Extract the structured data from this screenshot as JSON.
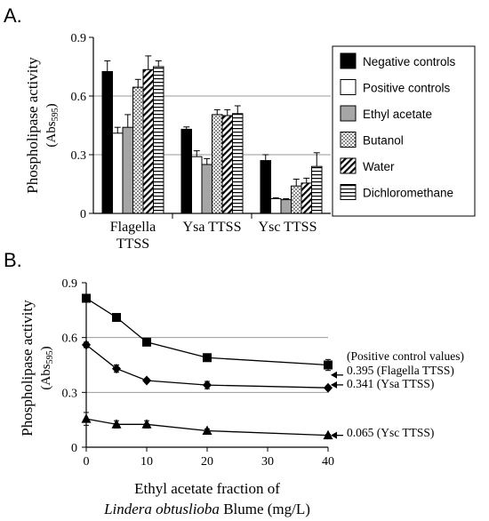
{
  "panel_a": {
    "label": "A.",
    "ylabel_main": "Phospholipase activity",
    "ylabel_unit_open": "(Abs",
    "ylabel_unit_sub": "595",
    "ylabel_unit_close": ")"
  },
  "panel_b": {
    "label": "B.",
    "ylabel_main": "Phospholipase  activity",
    "ylabel_unit_open": "(Abs",
    "ylabel_unit_sub": "595",
    "ylabel_unit_close": ")",
    "xlabel_line1": "Ethyl acetate fraction of",
    "xlabel_line2_italic": "Lindera obtuslioba",
    "xlabel_line2_rest": " Blume (mg/L)",
    "positive_header": "(Positive control values)"
  },
  "chart_data": [
    {
      "type": "bar",
      "panel": "A",
      "categories": [
        [
          "Flagella",
          "TTSS"
        ],
        [
          "Ysa TTSS"
        ],
        [
          "Ysc TTSS"
        ]
      ],
      "ylim": [
        0,
        0.9
      ],
      "yticks": [
        0,
        0.3,
        0.6,
        0.9
      ],
      "ytick_labels": [
        "0",
        "0.3",
        "0.6",
        "0.9"
      ],
      "gridlines": [
        0.3,
        0.6
      ],
      "legend_position": "right",
      "series": [
        {
          "name": "Negative controls",
          "pattern": "solid-black",
          "values": [
            0.725,
            0.43,
            0.27
          ],
          "errors": [
            0.055,
            0.012,
            0.03
          ]
        },
        {
          "name": "Positive controls",
          "pattern": "white",
          "values": [
            0.41,
            0.29,
            0.075
          ],
          "errors": [
            0.03,
            0.03,
            0.005
          ]
        },
        {
          "name": "Ethyl acetate",
          "pattern": "gray",
          "values": [
            0.44,
            0.25,
            0.07
          ],
          "errors": [
            0.065,
            0.03,
            0.005
          ]
        },
        {
          "name": "Butanol",
          "pattern": "dots",
          "values": [
            0.645,
            0.505,
            0.14
          ],
          "errors": [
            0.04,
            0.025,
            0.035
          ]
        },
        {
          "name": "Water",
          "pattern": "diagonal",
          "values": [
            0.735,
            0.5,
            0.155
          ],
          "errors": [
            0.07,
            0.03,
            0.025
          ]
        },
        {
          "name": "Dichloromethane",
          "pattern": "horizontal",
          "values": [
            0.75,
            0.51,
            0.24
          ],
          "errors": [
            0.03,
            0.04,
            0.07
          ]
        }
      ]
    },
    {
      "type": "line",
      "panel": "B",
      "x": [
        0,
        5,
        10,
        20,
        40
      ],
      "xlim": [
        0,
        40
      ],
      "xticks": [
        0,
        10,
        20,
        30,
        40
      ],
      "xtick_labels": [
        "0",
        "10",
        "20",
        "30",
        "40"
      ],
      "ylim": [
        0,
        0.9
      ],
      "yticks": [
        0,
        0.3,
        0.6,
        0.9
      ],
      "ytick_labels": [
        "0",
        "0.3",
        "0.6",
        "0.9"
      ],
      "gridlines": [
        0.3,
        0.6
      ],
      "series": [
        {
          "marker": "square",
          "values": [
            0.815,
            0.71,
            0.575,
            0.49,
            0.45
          ],
          "errors": [
            0.02,
            0.015,
            0.015,
            0.015,
            0.03
          ]
        },
        {
          "marker": "diamond",
          "values": [
            0.56,
            0.43,
            0.365,
            0.34,
            0.325
          ],
          "errors": [
            0.015,
            0.02,
            0.01,
            0.02,
            0.01
          ]
        },
        {
          "marker": "triangle",
          "values": [
            0.155,
            0.125,
            0.125,
            0.09,
            0.065
          ],
          "errors": [
            0.035,
            0.02,
            0.02,
            0.01,
            0.005
          ]
        }
      ],
      "positive_controls": [
        {
          "value": 0.395,
          "label": "0.395 (Flagella TTSS)"
        },
        {
          "value": 0.341,
          "label": "0.341 (Ysa TTSS)"
        },
        {
          "value": 0.065,
          "label": "0.065 (Ysc TTSS)"
        }
      ]
    }
  ]
}
